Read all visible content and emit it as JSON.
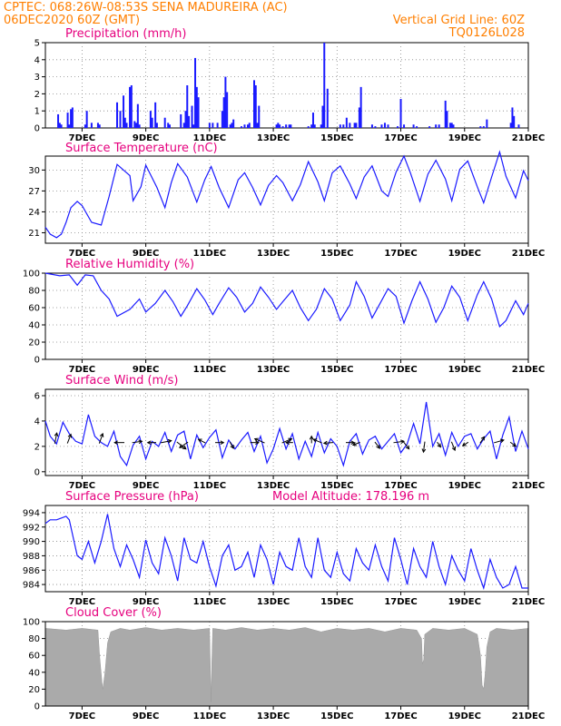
{
  "header": {
    "line1": "CPTEC:   068:26W-08:53S   SENA MADUREIRA (AC)",
    "line2_left": "06DEC2020 60Z (GMT)",
    "line2_right": "Vertical Grid Line: 60Z",
    "line3_right": "TQ0126L028"
  },
  "colors": {
    "header": "#ff7f00",
    "titles": "#e6007e",
    "series": "#1a1aff",
    "cloud": "#aaaaaa",
    "wind": "#000000"
  },
  "model_altitude": "Model Altitude: 178.196 m",
  "date_ticks": [
    "7DEC",
    "9DEC",
    "11DEC",
    "13DEC",
    "15DEC",
    "17DEC",
    "19DEC",
    "21DEC"
  ],
  "chart_data": [
    {
      "type": "bar",
      "title": "Precipitation (mm/h)",
      "ylim": [
        0,
        5
      ],
      "yticks": [
        "0",
        "1",
        "2",
        "3",
        "4",
        "5"
      ],
      "grid": true,
      "x_days": [
        6.25,
        6.3,
        6.35,
        6.55,
        6.6,
        6.65,
        6.7,
        7.1,
        7.15,
        7.3,
        7.5,
        7.55,
        8.1,
        8.2,
        8.3,
        8.35,
        8.4,
        8.5,
        8.55,
        8.65,
        8.7,
        8.75,
        8.8,
        9.15,
        9.2,
        9.3,
        9.35,
        9.6,
        9.7,
        9.75,
        10.1,
        10.2,
        10.25,
        10.3,
        10.35,
        10.45,
        10.5,
        10.55,
        10.6,
        10.65,
        11.0,
        11.1,
        11.25,
        11.4,
        11.45,
        11.5,
        11.55,
        11.65,
        11.7,
        11.75,
        12.0,
        12.1,
        12.2,
        12.25,
        12.4,
        12.45,
        12.5,
        12.55,
        13.1,
        13.15,
        13.2,
        13.3,
        13.4,
        13.5,
        13.55,
        14.1,
        14.2,
        14.25,
        14.3,
        14.5,
        14.55,
        14.6,
        14.7,
        15.1,
        15.2,
        15.3,
        15.4,
        15.55,
        15.6,
        15.7,
        15.75,
        16.1,
        16.2,
        16.4,
        16.5,
        16.6,
        16.9,
        17.0,
        17.1,
        17.4,
        17.5,
        17.9,
        18.1,
        18.2,
        18.4,
        18.45,
        18.55,
        18.6,
        18.65,
        19.5,
        19.6,
        19.7,
        20.45,
        20.5,
        20.55,
        20.7
      ],
      "values": [
        0.8,
        0.3,
        0.2,
        0.9,
        0.2,
        1.1,
        1.2,
        0.2,
        1.0,
        0.3,
        0.3,
        0.2,
        1.5,
        1.0,
        1.9,
        0.6,
        0.3,
        2.4,
        2.5,
        0.4,
        0.3,
        1.4,
        0.2,
        1.0,
        0.6,
        1.5,
        0.3,
        0.6,
        0.3,
        0.2,
        0.8,
        0.3,
        1.0,
        2.5,
        0.7,
        1.3,
        0.2,
        4.1,
        2.4,
        1.8,
        0.3,
        0.3,
        0.3,
        1.0,
        1.8,
        3.0,
        2.1,
        0.2,
        0.3,
        0.5,
        0.1,
        0.2,
        0.2,
        0.3,
        2.8,
        2.5,
        0.3,
        1.3,
        0.2,
        0.3,
        0.2,
        0.1,
        0.2,
        0.2,
        0.2,
        0.1,
        0.2,
        0.9,
        0.2,
        0.2,
        1.3,
        5.0,
        2.3,
        0.2,
        0.2,
        0.6,
        0.3,
        0.3,
        0.3,
        1.2,
        2.4,
        0.2,
        0.1,
        0.2,
        0.3,
        0.2,
        0.1,
        1.7,
        0.2,
        0.2,
        0.1,
        0.1,
        0.2,
        0.2,
        1.6,
        1.0,
        0.3,
        0.3,
        0.2,
        0.1,
        0.1,
        0.5,
        0.3,
        1.2,
        0.7,
        0.2
      ]
    },
    {
      "type": "line",
      "title": "Surface Temperature (nC)",
      "ylim": [
        19.5,
        32
      ],
      "yticks": [
        "21",
        "24",
        "27",
        "30"
      ],
      "grid": true,
      "x_days": [
        5.85,
        6.0,
        6.2,
        6.35,
        6.5,
        6.65,
        6.85,
        7.0,
        7.3,
        7.6,
        7.85,
        8.1,
        8.5,
        8.6,
        8.85,
        9.0,
        9.35,
        9.6,
        9.8,
        10.0,
        10.3,
        10.6,
        10.85,
        11.05,
        11.3,
        11.6,
        11.9,
        12.1,
        12.35,
        12.6,
        12.85,
        13.1,
        13.3,
        13.6,
        13.85,
        14.1,
        14.4,
        14.6,
        14.85,
        15.1,
        15.4,
        15.6,
        15.85,
        16.1,
        16.4,
        16.6,
        16.85,
        17.1,
        17.3,
        17.6,
        17.85,
        18.1,
        18.4,
        18.6,
        18.85,
        19.1,
        19.4,
        19.6,
        19.85,
        20.1,
        20.3,
        20.6,
        20.85,
        21.0
      ],
      "values": [
        21.8,
        20.8,
        20.3,
        20.8,
        22.5,
        24.6,
        25.5,
        24.9,
        22.5,
        22.1,
        26.2,
        30.8,
        29.2,
        25.6,
        27.6,
        30.7,
        27.5,
        24.6,
        28.2,
        30.9,
        29.0,
        25.4,
        28.6,
        30.5,
        27.5,
        24.6,
        28.6,
        29.6,
        27.5,
        25.0,
        27.8,
        29.2,
        28.2,
        25.6,
        27.9,
        31.2,
        28.3,
        25.6,
        29.6,
        30.6,
        28.0,
        25.9,
        29.0,
        30.6,
        27.0,
        26.2,
        29.7,
        32.0,
        29.6,
        25.5,
        29.4,
        31.4,
        28.7,
        25.6,
        30.1,
        31.3,
        27.6,
        25.3,
        29.0,
        32.6,
        29.1,
        26.0,
        29.9,
        28.5
      ]
    },
    {
      "type": "line",
      "title": "Relative Humidity (%)",
      "ylim": [
        0,
        100
      ],
      "yticks": [
        "0",
        "20",
        "40",
        "60",
        "80",
        "100"
      ],
      "grid": true,
      "x_days": [
        5.85,
        6.3,
        6.6,
        6.85,
        7.1,
        7.35,
        7.6,
        7.85,
        8.1,
        8.5,
        8.8,
        9.0,
        9.3,
        9.6,
        9.85,
        10.1,
        10.3,
        10.6,
        10.85,
        11.1,
        11.3,
        11.6,
        11.85,
        12.1,
        12.35,
        12.6,
        12.85,
        13.1,
        13.3,
        13.6,
        13.85,
        14.1,
        14.35,
        14.6,
        14.85,
        15.1,
        15.4,
        15.6,
        15.85,
        16.1,
        16.35,
        16.6,
        16.85,
        17.1,
        17.35,
        17.6,
        17.85,
        18.1,
        18.35,
        18.6,
        18.85,
        19.1,
        19.4,
        19.6,
        19.85,
        20.1,
        20.3,
        20.6,
        20.85,
        21.0
      ],
      "values": [
        100,
        97,
        98,
        86,
        98,
        97,
        80,
        70,
        50,
        58,
        70,
        55,
        65,
        80,
        67,
        50,
        62,
        82,
        69,
        52,
        65,
        83,
        72,
        55,
        65,
        84,
        72,
        58,
        67,
        80,
        60,
        45,
        58,
        82,
        70,
        45,
        63,
        90,
        73,
        48,
        65,
        82,
        73,
        42,
        68,
        90,
        70,
        43,
        60,
        85,
        72,
        45,
        75,
        90,
        70,
        38,
        45,
        68,
        52,
        65
      ]
    },
    {
      "type": "line",
      "title": "Surface Wind (m/s)",
      "ylim": [
        -0.3,
        6.5
      ],
      "yticks": [
        "0",
        "2",
        "4",
        "6"
      ],
      "grid": true,
      "x_days": [
        5.85,
        6.0,
        6.2,
        6.4,
        6.6,
        6.8,
        7.0,
        7.2,
        7.4,
        7.6,
        7.8,
        8.0,
        8.2,
        8.4,
        8.6,
        8.8,
        9.0,
        9.2,
        9.4,
        9.6,
        9.8,
        10.0,
        10.2,
        10.4,
        10.6,
        10.8,
        11.0,
        11.2,
        11.4,
        11.6,
        11.8,
        12.0,
        12.2,
        12.4,
        12.6,
        12.8,
        13.0,
        13.2,
        13.4,
        13.6,
        13.8,
        14.0,
        14.2,
        14.4,
        14.6,
        14.8,
        15.0,
        15.2,
        15.4,
        15.6,
        15.8,
        16.0,
        16.2,
        16.4,
        16.6,
        16.8,
        17.0,
        17.2,
        17.4,
        17.6,
        17.8,
        18.0,
        18.2,
        18.4,
        18.6,
        18.8,
        19.0,
        19.2,
        19.4,
        19.6,
        19.8,
        20.0,
        20.2,
        20.4,
        20.6,
        20.8,
        21.0
      ],
      "values": [
        4.0,
        2.8,
        2.2,
        3.9,
        3.0,
        2.4,
        2.2,
        4.5,
        2.8,
        2.3,
        2.0,
        3.2,
        1.2,
        0.5,
        2.1,
        2.8,
        1.0,
        2.4,
        2.0,
        3.1,
        1.6,
        2.9,
        3.2,
        1.0,
        2.9,
        1.9,
        2.7,
        3.3,
        1.1,
        2.5,
        1.8,
        2.5,
        3.1,
        1.6,
        2.8,
        0.7,
        1.8,
        3.4,
        1.8,
        3.0,
        1.0,
        2.4,
        1.2,
        3.1,
        1.5,
        2.6,
        2.0,
        0.5,
        2.4,
        3.0,
        1.4,
        2.5,
        2.8,
        1.8,
        2.4,
        3.0,
        1.5,
        2.2,
        3.8,
        2.2,
        5.5,
        2.0,
        3.0,
        1.3,
        3.1,
        2.0,
        2.8,
        3.0,
        1.8,
        2.6,
        3.2,
        1.0,
        2.9,
        4.3,
        1.6,
        3.2,
        1.8
      ]
    },
    {
      "type": "line",
      "title": "Surface Pressure (hPa)",
      "ylim": [
        983,
        995
      ],
      "yticks": [
        "984",
        "986",
        "988",
        "990",
        "992",
        "994"
      ],
      "grid": true,
      "x_days": [
        5.85,
        6.0,
        6.2,
        6.5,
        6.6,
        6.85,
        7.0,
        7.2,
        7.4,
        7.6,
        7.8,
        8.0,
        8.2,
        8.4,
        8.6,
        8.8,
        9.0,
        9.2,
        9.4,
        9.6,
        9.8,
        10.0,
        10.2,
        10.4,
        10.6,
        10.8,
        11.0,
        11.2,
        11.4,
        11.6,
        11.8,
        12.0,
        12.2,
        12.4,
        12.6,
        12.8,
        13.0,
        13.2,
        13.4,
        13.6,
        13.8,
        14.0,
        14.2,
        14.4,
        14.6,
        14.8,
        15.0,
        15.2,
        15.4,
        15.6,
        15.8,
        16.0,
        16.2,
        16.4,
        16.6,
        16.8,
        17.0,
        17.2,
        17.4,
        17.6,
        17.8,
        18.0,
        18.2,
        18.4,
        18.6,
        18.8,
        19.0,
        19.2,
        19.4,
        19.6,
        19.8,
        20.0,
        20.2,
        20.4,
        20.6,
        20.8,
        21.0
      ],
      "values": [
        992.5,
        993.0,
        993.0,
        993.5,
        993.0,
        988.0,
        987.5,
        990.0,
        987.0,
        990.0,
        993.8,
        989.0,
        986.5,
        989.5,
        987.5,
        985.0,
        990.2,
        987.0,
        985.5,
        990.5,
        988.0,
        984.5,
        990.5,
        987.5,
        987.0,
        990.0,
        986.5,
        983.8,
        988.0,
        989.5,
        986.0,
        986.5,
        988.5,
        985.0,
        989.5,
        987.5,
        984.0,
        988.5,
        986.5,
        986.0,
        990.5,
        986.5,
        985.0,
        990.5,
        986.0,
        985.0,
        988.5,
        985.5,
        984.5,
        989.0,
        987.0,
        986.0,
        989.5,
        986.5,
        984.5,
        990.5,
        987.5,
        984.0,
        989.0,
        986.5,
        985.0,
        990.0,
        986.5,
        984.0,
        988.0,
        986.0,
        984.5,
        989.0,
        986.0,
        983.5,
        987.5,
        985.0,
        983.5,
        984.0,
        986.5,
        983.5,
        983.5
      ]
    },
    {
      "type": "area",
      "title": "Cloud Cover (%)",
      "ylim": [
        0,
        100
      ],
      "yticks": [
        "0",
        "20",
        "40",
        "60",
        "80",
        "100"
      ],
      "grid": true,
      "x_days": [
        5.85,
        6.5,
        7.0,
        7.5,
        7.55,
        7.62,
        7.65,
        7.72,
        7.8,
        7.9,
        8.2,
        8.5,
        9.0,
        9.5,
        10.0,
        10.5,
        11.0,
        11.05,
        11.07,
        11.1,
        11.5,
        12.0,
        12.5,
        13.0,
        13.5,
        14.0,
        14.5,
        15.0,
        15.5,
        16.0,
        16.5,
        17.0,
        17.5,
        17.65,
        17.68,
        17.72,
        17.75,
        18.0,
        18.5,
        19.0,
        19.4,
        19.5,
        19.55,
        19.6,
        19.65,
        19.7,
        19.8,
        20.0,
        20.5,
        21.0
      ],
      "values": [
        92,
        90,
        92,
        90,
        60,
        30,
        20,
        40,
        75,
        88,
        92,
        90,
        93,
        90,
        92,
        90,
        92,
        5,
        50,
        92,
        90,
        93,
        90,
        92,
        90,
        93,
        88,
        92,
        90,
        92,
        88,
        92,
        90,
        80,
        50,
        55,
        85,
        92,
        90,
        92,
        85,
        60,
        25,
        20,
        40,
        70,
        88,
        92,
        90,
        92
      ]
    }
  ],
  "wind_barbs": {
    "x_days": [
      6.15,
      6.55,
      7.55,
      8.3,
      8.6,
      9.3,
      9.5,
      10.0,
      10.3,
      10.85,
      11.2,
      11.65,
      12.3,
      12.7,
      13.3,
      13.6,
      14.2,
      14.5,
      14.85,
      15.3,
      15.7,
      16.2,
      16.8,
      17.1,
      17.75,
      18.15,
      18.6,
      19.1,
      19.5,
      19.95,
      20.45
    ],
    "u": [
      0.3,
      0.5,
      0.5,
      -1.4,
      1.4,
      -1.2,
      1.5,
      1.3,
      -1.2,
      -1.0,
      1.2,
      0.5,
      1.2,
      -1.4,
      1.4,
      -1.0,
      0.0,
      -1.2,
      -1.3,
      1.2,
      -1.0,
      0.7,
      1.5,
      0.8,
      -0.2,
      0.5,
      0.5,
      -0.8,
      0.6,
      1.4,
      0.8
    ],
    "v": [
      1.5,
      1.3,
      1.4,
      0.0,
      0.2,
      0.0,
      0.3,
      -1.0,
      -0.8,
      0.5,
      0.0,
      -0.9,
      0.0,
      0.6,
      0.6,
      0.0,
      1.0,
      0.5,
      -0.1,
      0.0,
      -0.4,
      -0.9,
      0.2,
      -1.0,
      -1.5,
      -0.7,
      -1.2,
      -0.5,
      0.9,
      0.4,
      -0.6
    ]
  }
}
